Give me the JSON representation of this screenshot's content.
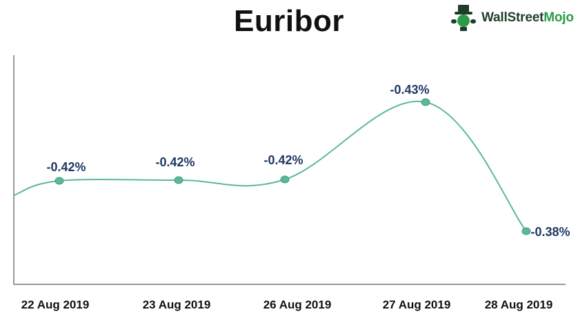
{
  "brand": {
    "name": "WallStreetMojo",
    "logo_icon": "mascot-logo-icon",
    "colors": {
      "dark": "#1f3d2a",
      "accent": "#2e9a48"
    }
  },
  "colors": {
    "line": "#5cb89c",
    "marker_fill": "#5cb89c",
    "marker_stroke": "#3f9a80",
    "data_label": "#1f3864",
    "axis": "#333333"
  },
  "chart_data": {
    "type": "line",
    "title": "Euribor",
    "xlabel": "",
    "ylabel": "",
    "categories": [
      "22 Aug 2019",
      "23 Aug 2019",
      "26 Aug 2019",
      "27 Aug 2019",
      "28 Aug 2019"
    ],
    "values": [
      -0.42,
      -0.42,
      -0.42,
      -0.43,
      -0.38
    ],
    "data_labels": [
      "-0.42%",
      "-0.42%",
      "-0.42%",
      "-0.43%",
      "-0.38%"
    ],
    "y_axis_inverted": true,
    "smoothed": true,
    "grid": false,
    "legend": "none"
  }
}
